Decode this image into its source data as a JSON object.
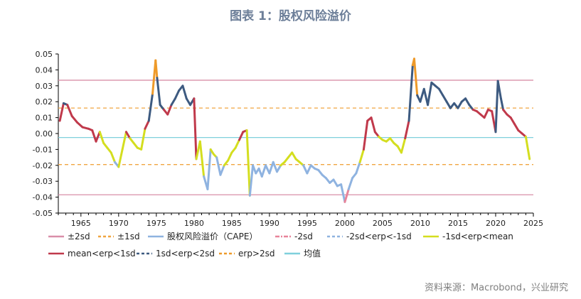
{
  "title": "图表 1：股权风险溢价",
  "source": "资料来源：Macrobond，兴业研究",
  "colors": {
    "band2sd": "#d98fa9",
    "band1sd": "#f0a540",
    "erp_line": "#8fb3e0",
    "mean_line": "#7fd0dc",
    "below_2sd": "#e8849a",
    "between_m2_m1": "#8fb3e0",
    "between_m1_mean": "#d4de1f",
    "between_mean_1": "#c0394b",
    "between_1_2": "#3d5a80",
    "above_2sd": "#ee9a2a"
  },
  "chart_data": {
    "type": "line",
    "title": "股权风险溢价",
    "xlabel": "",
    "ylabel": "",
    "xlim": [
      1962,
      2025
    ],
    "ylim": [
      -0.05,
      0.05
    ],
    "x_ticks": [
      "1965",
      "1970",
      "1975",
      "1980",
      "1985",
      "1990",
      "1995",
      "2000",
      "2005",
      "2010",
      "2015",
      "2020",
      "2025"
    ],
    "y_ticks": [
      "0.05",
      "0.04",
      "0.03",
      "0.02",
      "0.01",
      "0.00",
      "-0.01",
      "-0.02",
      "-0.03",
      "-0.04",
      "-0.05"
    ],
    "reference_lines": {
      "plus_2sd": 0.0335,
      "minus_2sd": -0.0385,
      "plus_1sd": 0.016,
      "minus_1sd": -0.0195,
      "mean": -0.0025
    },
    "legend": [
      {
        "label": "±2sd",
        "style": "solid",
        "color_key": "band2sd"
      },
      {
        "label": "±1sd",
        "style": "dashed",
        "color_key": "band1sd"
      },
      {
        "label": "股权风险溢价（CAPE）",
        "style": "solid",
        "color_key": "erp_line"
      },
      {
        "label": "-2sd",
        "style": "dashdot",
        "color_key": "below_2sd"
      },
      {
        "label": "-2sd<erp<-1sd",
        "style": "dashed",
        "color_key": "between_m2_m1"
      },
      {
        "label": "-1sd<erp<mean",
        "style": "solid",
        "color_key": "between_m1_mean"
      },
      {
        "label": "mean<erp<1sd",
        "style": "solid",
        "color_key": "between_mean_1"
      },
      {
        "label": "1sd<erp<2sd",
        "style": "dashed",
        "color_key": "between_1_2"
      },
      {
        "label": "erp>2sd",
        "style": "dashed",
        "color_key": "above_2sd"
      },
      {
        "label": "均值",
        "style": "solid",
        "color_key": "mean_line"
      }
    ],
    "series": [
      {
        "name": "股权风险溢价（CAPE）",
        "x": [
          1962.2,
          1962.7,
          1963.2,
          1963.8,
          1964.5,
          1965.2,
          1966.0,
          1966.5,
          1967.0,
          1967.5,
          1968.0,
          1968.5,
          1969.0,
          1969.5,
          1970.0,
          1970.5,
          1971.0,
          1971.5,
          1972.0,
          1972.5,
          1973.0,
          1973.5,
          1974.0,
          1974.5,
          1974.9,
          1975.1,
          1975.5,
          1976.0,
          1976.5,
          1977.0,
          1977.5,
          1978.0,
          1978.5,
          1979.0,
          1979.5,
          1980.0,
          1980.3,
          1980.8,
          1981.3,
          1981.8,
          1982.2,
          1982.6,
          1983.0,
          1983.5,
          1984.0,
          1984.5,
          1985.0,
          1985.5,
          1986.0,
          1986.5,
          1987.0,
          1987.4,
          1987.8,
          1988.2,
          1988.6,
          1989.0,
          1989.5,
          1990.0,
          1990.5,
          1991.0,
          1991.5,
          1992.0,
          1992.5,
          1993.0,
          1993.5,
          1994.0,
          1994.5,
          1995.0,
          1995.5,
          1996.0,
          1996.5,
          1997.0,
          1997.5,
          1998.0,
          1998.5,
          1999.0,
          1999.5,
          2000.0,
          2000.5,
          2001.0,
          2001.5,
          2002.0,
          2002.5,
          2003.0,
          2003.5,
          2004.0,
          2004.5,
          2005.0,
          2005.5,
          2006.0,
          2006.5,
          2007.0,
          2007.5,
          2008.0,
          2008.5,
          2009.0,
          2009.2,
          2009.6,
          2010.0,
          2010.5,
          2011.0,
          2011.5,
          2012.0,
          2012.5,
          2013.0,
          2013.5,
          2014.0,
          2014.5,
          2015.0,
          2015.5,
          2016.0,
          2016.5,
          2017.0,
          2017.5,
          2018.0,
          2018.5,
          2019.0,
          2019.5,
          2020.0,
          2020.3,
          2020.7,
          2021.0,
          2021.5,
          2022.0,
          2022.5,
          2023.0,
          2023.5,
          2024.0,
          2024.5
        ],
        "values": [
          0.008,
          0.019,
          0.018,
          0.011,
          0.007,
          0.004,
          0.003,
          0.002,
          -0.005,
          0.001,
          -0.006,
          -0.009,
          -0.012,
          -0.018,
          -0.021,
          -0.01,
          0.001,
          -0.003,
          -0.006,
          -0.009,
          -0.01,
          0.003,
          0.008,
          0.025,
          0.046,
          0.035,
          0.018,
          0.015,
          0.012,
          0.018,
          0.022,
          0.027,
          0.03,
          0.022,
          0.018,
          0.022,
          -0.016,
          -0.005,
          -0.027,
          -0.035,
          -0.01,
          -0.013,
          -0.015,
          -0.026,
          -0.02,
          -0.017,
          -0.012,
          -0.009,
          -0.004,
          0.001,
          0.002,
          -0.039,
          -0.02,
          -0.025,
          -0.022,
          -0.027,
          -0.02,
          -0.025,
          -0.018,
          -0.024,
          -0.02,
          -0.018,
          -0.015,
          -0.012,
          -0.016,
          -0.018,
          -0.02,
          -0.025,
          -0.02,
          -0.022,
          -0.023,
          -0.026,
          -0.028,
          -0.031,
          -0.029,
          -0.033,
          -0.032,
          -0.043,
          -0.035,
          -0.028,
          -0.025,
          -0.018,
          -0.01,
          0.008,
          0.01,
          0.001,
          -0.002,
          -0.004,
          -0.005,
          -0.003,
          -0.006,
          -0.008,
          -0.012,
          -0.003,
          0.008,
          0.043,
          0.047,
          0.024,
          0.02,
          0.028,
          0.018,
          0.032,
          0.03,
          0.028,
          0.024,
          0.02,
          0.016,
          0.019,
          0.016,
          0.02,
          0.022,
          0.018,
          0.015,
          0.014,
          0.012,
          0.01,
          0.015,
          0.014,
          0.001,
          0.033,
          0.022,
          0.015,
          0.012,
          0.01,
          0.006,
          0.002,
          0.0,
          -0.002,
          -0.016
        ]
      }
    ]
  }
}
